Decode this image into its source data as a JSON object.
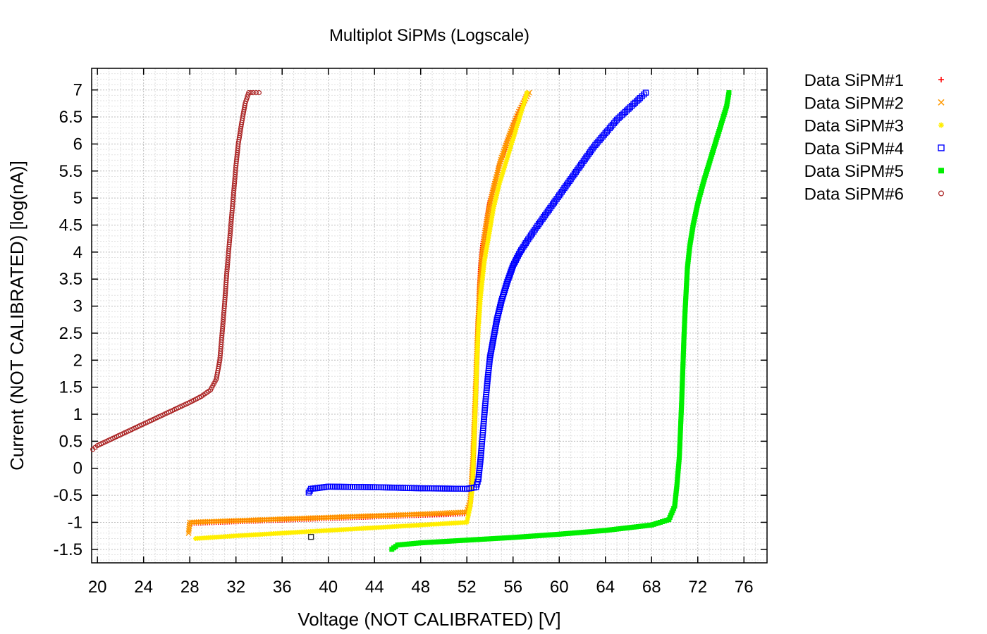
{
  "chart_data": {
    "type": "scatter",
    "title": "Multiplot SiPMs (Logscale)",
    "xlabel": "Voltage (NOT CALIBRATED) [V]",
    "ylabel": "Current (NOT CALIBRATED) [log(nA)]",
    "xlim": [
      19.5,
      78
    ],
    "ylim": [
      -1.75,
      7.4
    ],
    "x_ticks": [
      20,
      24,
      28,
      32,
      36,
      40,
      44,
      48,
      52,
      56,
      60,
      64,
      68,
      72,
      76
    ],
    "y_ticks": [
      7,
      6.5,
      6,
      5.5,
      5,
      4.5,
      4,
      3.5,
      3,
      2.5,
      2,
      1.5,
      1,
      0.5,
      0,
      -0.5,
      -1,
      -1.5
    ],
    "grid": true,
    "legend_position": "outside-right-top",
    "series": [
      {
        "name": "Data SiPM#1",
        "color": "#ff0000",
        "marker": "plus",
        "x": [
          28.0,
          32.0,
          36.0,
          40.0,
          44.0,
          48.0,
          50.0,
          52.0,
          52.3,
          52.5,
          52.6,
          52.7,
          52.8,
          52.9,
          53.0,
          53.1,
          53.2,
          53.4,
          53.7,
          54.0,
          54.4,
          54.8,
          55.2,
          55.6,
          56.0,
          56.4,
          56.8,
          57.2
        ],
        "y": [
          -1.02,
          -0.99,
          -0.96,
          -0.93,
          -0.9,
          -0.87,
          -0.86,
          -0.84,
          -0.7,
          -0.2,
          0.4,
          1.0,
          1.6,
          2.2,
          2.9,
          3.4,
          3.8,
          4.2,
          4.6,
          4.95,
          5.3,
          5.6,
          5.85,
          6.1,
          6.35,
          6.55,
          6.75,
          6.95
        ]
      },
      {
        "name": "Data SiPM#2",
        "color": "#ff9900",
        "marker": "cross",
        "x": [
          27.9,
          28.0,
          32.0,
          36.0,
          40.0,
          44.0,
          48.0,
          52.0,
          52.3,
          52.5,
          52.7,
          52.9,
          53.1,
          53.3,
          53.6,
          54.0,
          54.5,
          55.0,
          55.5,
          56.0,
          56.5,
          57.0,
          57.4
        ],
        "y": [
          -1.2,
          -1.0,
          -0.97,
          -0.94,
          -0.91,
          -0.88,
          -0.85,
          -0.81,
          -0.6,
          0.1,
          1.2,
          2.4,
          3.3,
          3.9,
          4.4,
          4.9,
          5.35,
          5.75,
          6.05,
          6.35,
          6.6,
          6.8,
          6.95
        ]
      },
      {
        "name": "Data SiPM#3",
        "color": "#ffee00",
        "marker": "star",
        "x": [
          28.5,
          32.0,
          36.0,
          40.0,
          44.0,
          48.0,
          52.0,
          52.3,
          52.5,
          52.6,
          52.7,
          52.8,
          52.9,
          53.0,
          53.2,
          53.5,
          53.9,
          54.3,
          54.8,
          55.3,
          55.8,
          56.3,
          56.8,
          57.2
        ],
        "y": [
          -1.3,
          -1.25,
          -1.2,
          -1.15,
          -1.1,
          -1.05,
          -1.0,
          -0.7,
          -0.3,
          0.3,
          0.9,
          1.5,
          2.1,
          2.6,
          3.2,
          3.8,
          4.3,
          4.8,
          5.25,
          5.6,
          5.95,
          6.3,
          6.65,
          6.95
        ]
      },
      {
        "name": "Data SiPM#4",
        "color": "#0000ff",
        "marker": "square",
        "x": [
          38.3,
          38.5,
          40.0,
          44.0,
          48.0,
          52.0,
          52.8,
          53.0,
          53.2,
          53.4,
          53.6,
          53.8,
          54.0,
          54.3,
          54.6,
          55.0,
          55.5,
          56.0,
          56.6,
          57.2,
          58.0,
          59.0,
          60.0,
          61.0,
          62.0,
          63.0,
          64.0,
          65.0,
          66.0,
          67.0,
          67.5
        ],
        "y": [
          -0.45,
          -0.38,
          -0.34,
          -0.35,
          -0.37,
          -0.38,
          -0.35,
          -0.2,
          0.2,
          0.7,
          1.2,
          1.65,
          2.05,
          2.4,
          2.75,
          3.1,
          3.45,
          3.75,
          4.0,
          4.2,
          4.45,
          4.75,
          5.05,
          5.35,
          5.65,
          5.95,
          6.2,
          6.45,
          6.65,
          6.85,
          6.95
        ]
      },
      {
        "name": "Data SiPM#5",
        "color": "#00ee00",
        "marker": "filled-square",
        "x": [
          45.5,
          46.0,
          48.0,
          52.0,
          56.0,
          60.0,
          64.0,
          68.0,
          69.5,
          70.0,
          70.2,
          70.4,
          70.5,
          70.6,
          70.7,
          70.8,
          70.9,
          71.0,
          71.1,
          71.3,
          71.6,
          72.0,
          72.5,
          73.0,
          73.5,
          74.0,
          74.5,
          74.7
        ],
        "y": [
          -1.5,
          -1.42,
          -1.38,
          -1.33,
          -1.28,
          -1.22,
          -1.15,
          -1.05,
          -0.95,
          -0.7,
          -0.3,
          0.2,
          0.7,
          1.2,
          1.8,
          2.4,
          2.9,
          3.3,
          3.7,
          4.1,
          4.5,
          4.9,
          5.3,
          5.65,
          6.0,
          6.35,
          6.7,
          6.95
        ]
      },
      {
        "name": "Data SiPM#6",
        "color": "#aa2222",
        "marker": "circle",
        "x": [
          19.6,
          20.0,
          21.0,
          22.0,
          23.0,
          24.0,
          25.0,
          26.0,
          27.0,
          28.0,
          29.0,
          29.8,
          30.3,
          30.6,
          30.8,
          31.0,
          31.2,
          31.4,
          31.6,
          31.8,
          32.0,
          32.2,
          32.5,
          32.8,
          33.1,
          33.5,
          34.0
        ],
        "y": [
          0.35,
          0.42,
          0.52,
          0.62,
          0.72,
          0.82,
          0.92,
          1.02,
          1.12,
          1.22,
          1.33,
          1.45,
          1.65,
          2.0,
          2.5,
          3.0,
          3.6,
          4.1,
          4.6,
          5.1,
          5.6,
          6.0,
          6.4,
          6.75,
          6.95,
          6.95,
          6.95
        ]
      }
    ],
    "annotations": [
      {
        "x": 38.5,
        "y": -1.27,
        "marker": "square",
        "color": "#333333"
      }
    ]
  }
}
